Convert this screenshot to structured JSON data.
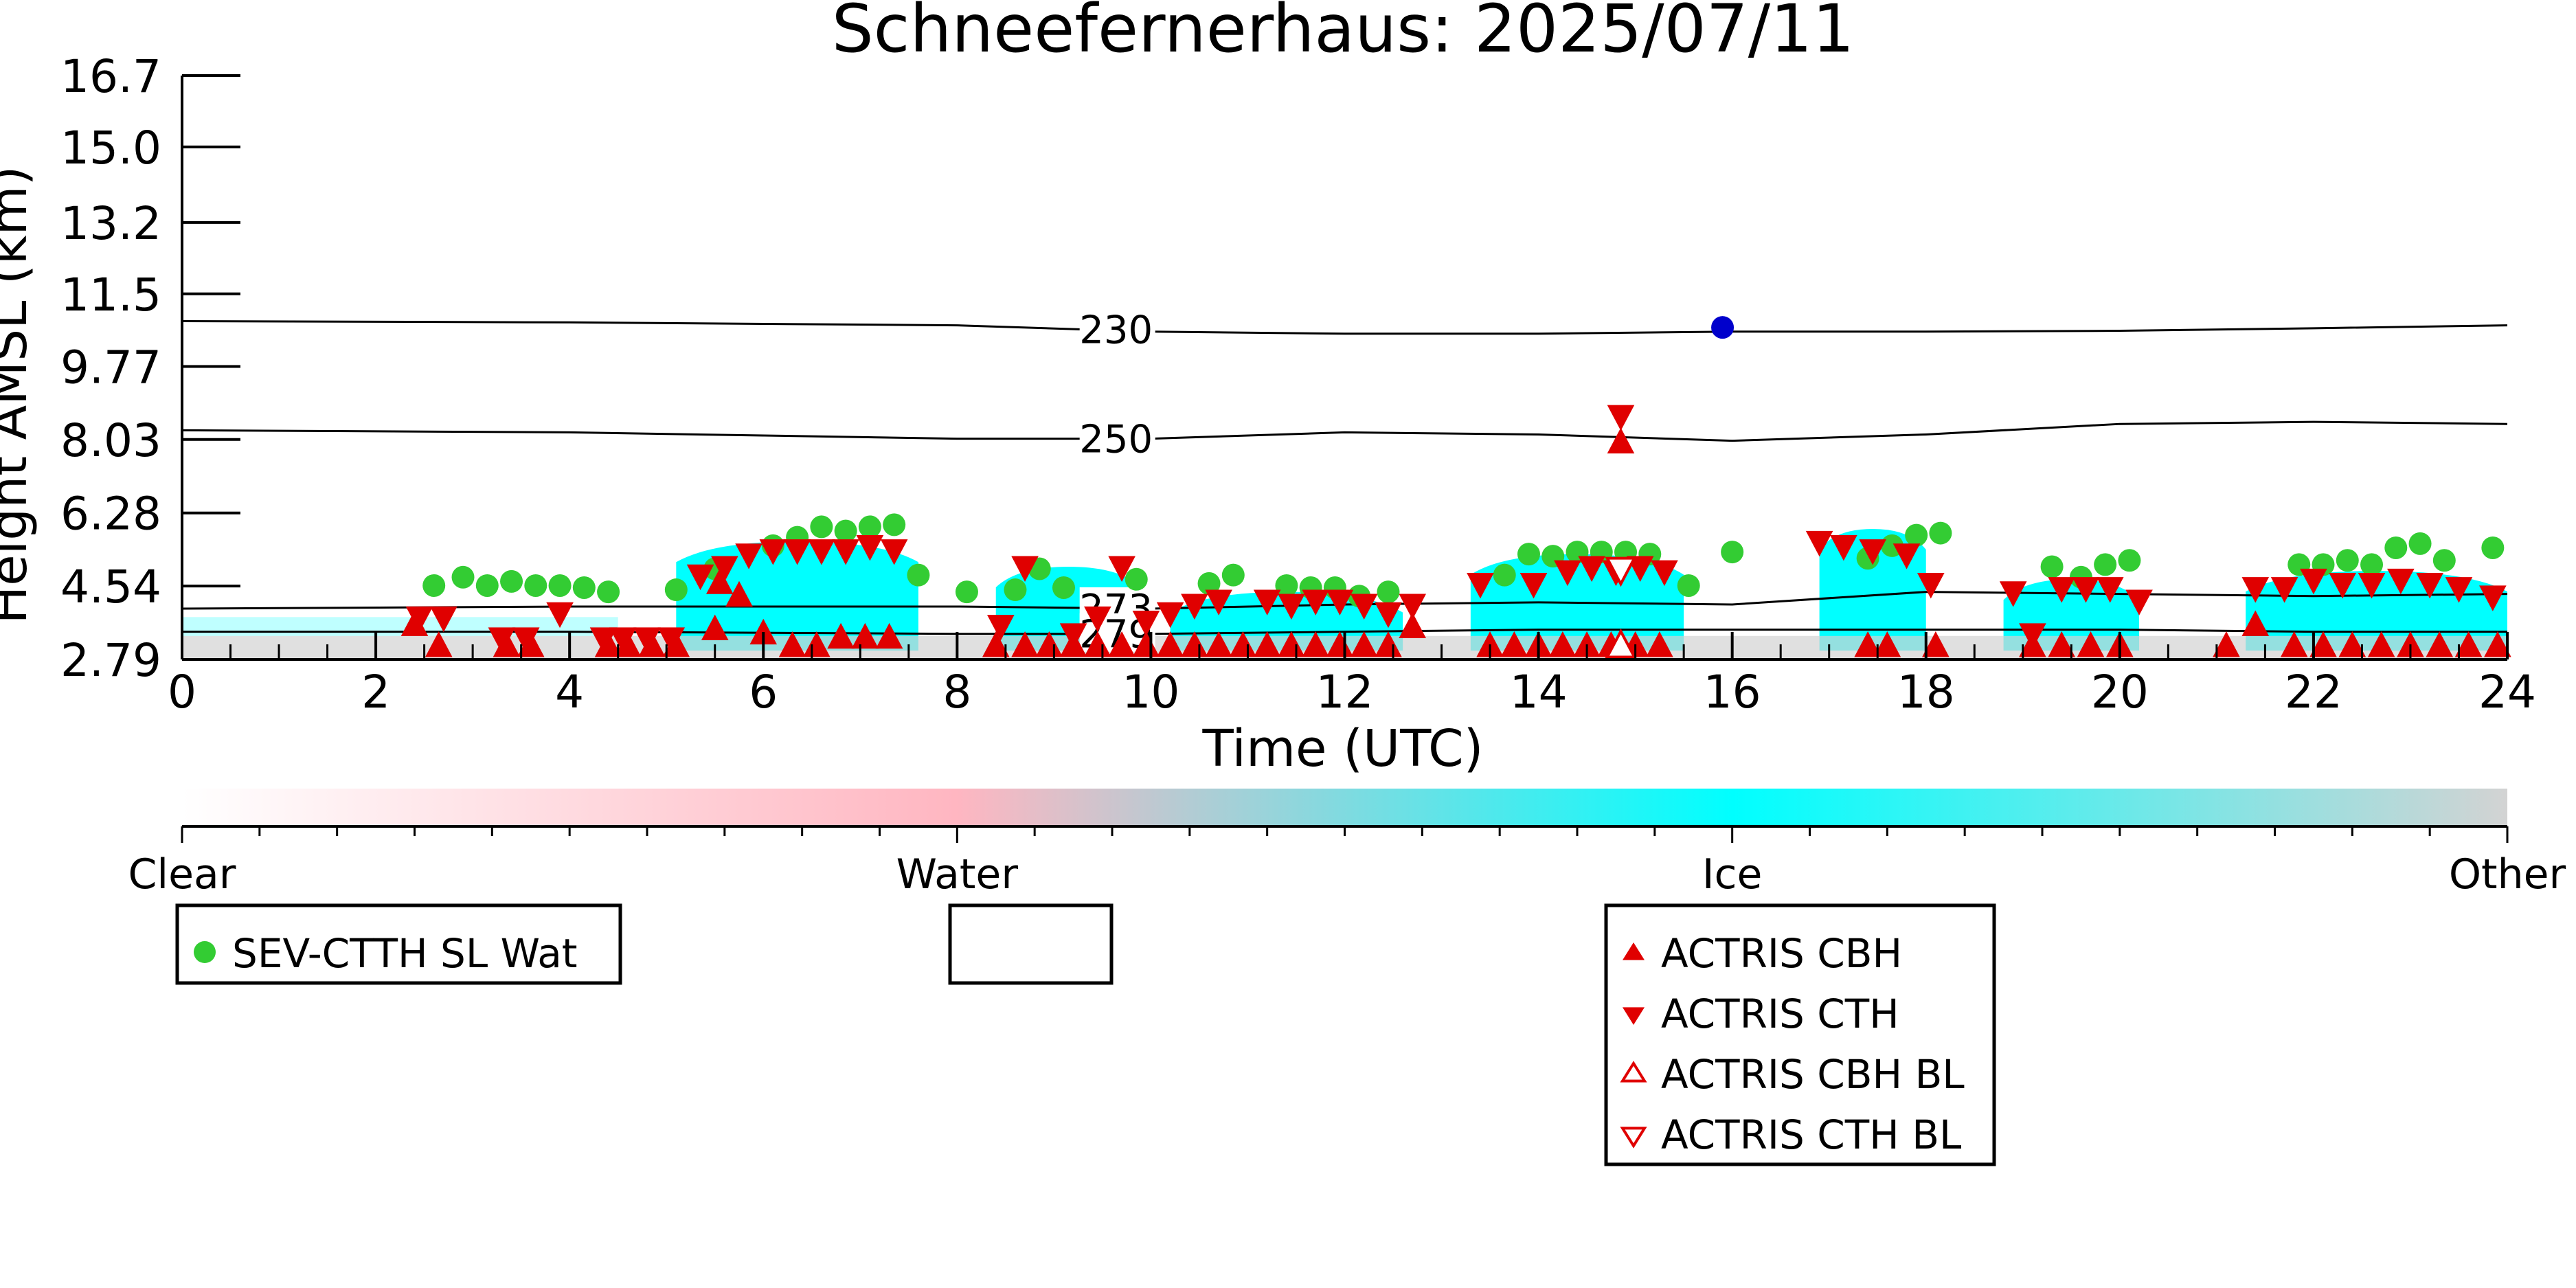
{
  "chart_data": {
    "type": "scatter",
    "title": "Schneefernerhaus: 2025/07/11",
    "xlabel": "Time (UTC)",
    "ylabel": "Height AMSL (km)",
    "xlim": [
      0,
      24
    ],
    "ylim": [
      2.79,
      16.7
    ],
    "xticks": [
      0,
      2,
      4,
      6,
      8,
      10,
      12,
      14,
      16,
      18,
      20,
      22,
      24
    ],
    "yticks": [
      "2.79",
      "4.54",
      "6.28",
      "8.03",
      "9.77",
      "11.5",
      "13.2",
      "15.0",
      "16.7"
    ],
    "ytick_values": [
      2.79,
      4.54,
      6.28,
      8.03,
      9.77,
      11.5,
      13.2,
      15.0,
      16.7
    ],
    "colorbar": {
      "labels": [
        "Clear",
        "Water",
        "Ice",
        "Other"
      ],
      "colors": [
        "#ffffff",
        "#ffb6c1",
        "#00ffff",
        "#d3d3d3"
      ]
    },
    "contours": [
      {
        "label": "230",
        "x": [
          0,
          4,
          8,
          10,
          12,
          14,
          16,
          18,
          20,
          22,
          24
        ],
        "y": [
          10.85,
          10.82,
          10.75,
          10.6,
          10.55,
          10.55,
          10.6,
          10.6,
          10.62,
          10.68,
          10.75
        ],
        "label_x": 9.3
      },
      {
        "label": "250",
        "x": [
          0,
          4,
          8,
          10,
          12,
          14,
          16,
          18,
          20,
          22,
          24
        ],
        "y": [
          8.25,
          8.2,
          8.05,
          8.05,
          8.2,
          8.15,
          8.0,
          8.15,
          8.4,
          8.45,
          8.4
        ],
        "label_x": 9.3
      },
      {
        "label": "273",
        "x": [
          0,
          4,
          8,
          10,
          12,
          14,
          16,
          18,
          20,
          22,
          24
        ],
        "y": [
          4.0,
          4.05,
          4.05,
          4.0,
          4.1,
          4.15,
          4.1,
          4.4,
          4.35,
          4.3,
          4.35
        ],
        "label_x": 9.3
      },
      {
        "label": "279",
        "x": [
          0,
          4,
          8,
          10,
          12,
          14,
          16,
          18,
          20,
          22,
          24
        ],
        "y": [
          3.45,
          3.45,
          3.4,
          3.4,
          3.45,
          3.5,
          3.5,
          3.5,
          3.5,
          3.45,
          3.45
        ],
        "label_x": 9.3
      }
    ],
    "ice_regions": [
      {
        "x0": 5.1,
        "x1": 7.6,
        "ytop": 5.6
      },
      {
        "x0": 8.4,
        "x1": 9.9,
        "ytop": 5.0
      },
      {
        "x0": 10.2,
        "x1": 12.6,
        "ytop": 4.4
      },
      {
        "x0": 13.3,
        "x1": 15.5,
        "ytop": 5.3
      },
      {
        "x0": 16.9,
        "x1": 18.0,
        "ytop": 5.9
      },
      {
        "x0": 18.8,
        "x1": 20.2,
        "ytop": 4.7
      },
      {
        "x0": 21.3,
        "x1": 24.0,
        "ytop": 4.9
      }
    ],
    "series": [
      {
        "name": "SEV-CTTH SL Wat",
        "marker": "circle",
        "color": "#33cc33",
        "x": [
          2.6,
          2.9,
          3.15,
          3.4,
          3.65,
          3.9,
          4.15,
          4.4,
          5.1,
          5.5,
          6.1,
          6.35,
          6.6,
          6.85,
          7.1,
          7.35,
          7.6,
          8.1,
          8.6,
          8.85,
          9.1,
          9.85,
          10.6,
          10.85,
          11.4,
          11.65,
          11.9,
          12.15,
          12.45,
          13.65,
          13.9,
          14.15,
          14.4,
          14.65,
          14.9,
          15.15,
          15.55,
          16.0,
          17.4,
          17.65,
          17.9,
          18.15,
          19.3,
          19.6,
          19.85,
          20.1,
          21.85,
          22.1,
          22.35,
          22.6,
          22.85,
          23.1,
          23.35,
          23.85
        ],
        "y": [
          4.55,
          4.75,
          4.55,
          4.65,
          4.55,
          4.55,
          4.5,
          4.4,
          4.45,
          4.95,
          5.5,
          5.7,
          5.95,
          5.85,
          5.95,
          6.0,
          4.8,
          4.4,
          4.45,
          4.95,
          4.5,
          4.7,
          4.6,
          4.8,
          4.55,
          4.5,
          4.5,
          4.3,
          4.4,
          4.8,
          5.3,
          5.25,
          5.35,
          5.35,
          5.35,
          5.3,
          4.55,
          5.35,
          5.2,
          5.5,
          5.75,
          5.8,
          5.0,
          4.75,
          5.05,
          5.15,
          5.05,
          5.05,
          5.15,
          5.05,
          5.45,
          5.55,
          5.15,
          5.45
        ],
        "size": 22
      },
      {
        "name": "",
        "marker": "circle",
        "color": "#0000cc",
        "x": [
          15.9
        ],
        "y": [
          10.7
        ],
        "size": 22
      },
      {
        "name": "ACTRIS CBH",
        "marker": "triangle-up-filled",
        "color": "#e00000",
        "x": [
          2.4,
          2.65,
          3.35,
          3.6,
          4.4,
          4.6,
          4.85,
          5.1,
          5.5,
          5.75,
          6.0,
          6.3,
          6.55,
          6.8,
          7.05,
          7.3,
          8.4,
          8.7,
          8.95,
          9.2,
          9.45,
          9.7,
          9.95,
          10.2,
          10.45,
          10.7,
          10.95,
          11.2,
          11.45,
          11.7,
          11.95,
          12.2,
          12.45,
          12.7,
          13.5,
          13.75,
          14.0,
          14.25,
          14.5,
          14.75,
          15.0,
          15.25,
          17.4,
          17.6,
          18.1,
          19.1,
          19.4,
          19.7,
          20.0,
          21.1,
          21.4,
          21.8,
          22.1,
          22.4,
          22.7,
          23.0,
          23.3,
          23.6,
          23.9,
          5.55,
          14.85
        ],
        "y": [
          3.6,
          3.1,
          3.1,
          3.1,
          3.1,
          3.1,
          3.1,
          3.1,
          3.5,
          4.3,
          3.4,
          3.1,
          3.1,
          3.3,
          3.3,
          3.3,
          3.1,
          3.1,
          3.1,
          3.1,
          3.1,
          3.1,
          3.1,
          3.1,
          3.1,
          3.1,
          3.1,
          3.1,
          3.1,
          3.1,
          3.1,
          3.1,
          3.1,
          3.55,
          3.1,
          3.1,
          3.1,
          3.1,
          3.1,
          3.1,
          3.1,
          3.1,
          3.1,
          3.1,
          3.1,
          3.1,
          3.1,
          3.1,
          3.1,
          3.1,
          3.6,
          3.1,
          3.1,
          3.1,
          3.1,
          3.1,
          3.1,
          3.1,
          3.1,
          4.6,
          7.95
        ],
        "size": 22
      },
      {
        "name": "ACTRIS CTH",
        "marker": "triangle-down-filled",
        "color": "#e00000",
        "x": [
          2.45,
          2.7,
          3.3,
          3.55,
          3.9,
          4.35,
          4.55,
          4.8,
          5.05,
          5.35,
          5.6,
          5.85,
          6.1,
          6.35,
          6.6,
          6.85,
          7.1,
          7.35,
          8.45,
          8.7,
          9.2,
          9.45,
          9.7,
          9.95,
          10.2,
          10.45,
          10.7,
          11.2,
          11.45,
          11.7,
          11.95,
          12.2,
          12.45,
          12.7,
          13.4,
          13.95,
          14.3,
          14.55,
          14.8,
          15.05,
          15.3,
          16.9,
          17.15,
          17.45,
          17.8,
          18.05,
          18.9,
          19.1,
          19.4,
          19.65,
          19.9,
          20.2,
          21.4,
          21.7,
          22.0,
          22.3,
          22.6,
          22.9,
          23.2,
          23.5,
          23.85,
          14.85
        ],
        "y": [
          3.8,
          3.8,
          3.3,
          3.3,
          3.9,
          3.3,
          3.3,
          3.3,
          3.3,
          4.8,
          5.0,
          5.3,
          5.4,
          5.4,
          5.4,
          5.4,
          5.5,
          5.4,
          3.6,
          5.0,
          3.4,
          3.8,
          5.0,
          3.7,
          3.9,
          4.1,
          4.2,
          4.2,
          4.1,
          4.2,
          4.2,
          4.1,
          3.9,
          4.1,
          4.6,
          4.6,
          4.9,
          5.0,
          4.9,
          5.0,
          4.9,
          5.6,
          5.5,
          5.4,
          5.3,
          4.6,
          4.4,
          3.4,
          4.5,
          4.5,
          4.5,
          4.2,
          4.5,
          4.5,
          4.7,
          4.6,
          4.6,
          4.7,
          4.6,
          4.5,
          4.3,
          8.6
        ],
        "size": 22
      },
      {
        "name": "ACTRIS CBH BL",
        "marker": "triangle-up-open",
        "color": "#e00000",
        "x": [
          14.85
        ],
        "y": [
          3.1
        ],
        "size": 22
      },
      {
        "name": "ACTRIS CTH BL",
        "marker": "triangle-down-open",
        "color": "#e00000",
        "x": [
          14.85
        ],
        "y": [
          4.95
        ],
        "size": 22
      }
    ],
    "legend": {
      "group1": [
        "SEV-CTTH SL Wat"
      ],
      "group2": [],
      "group3": [
        "ACTRIS CBH",
        "ACTRIS CTH",
        "ACTRIS CBH BL",
        "ACTRIS CTH BL"
      ]
    }
  }
}
